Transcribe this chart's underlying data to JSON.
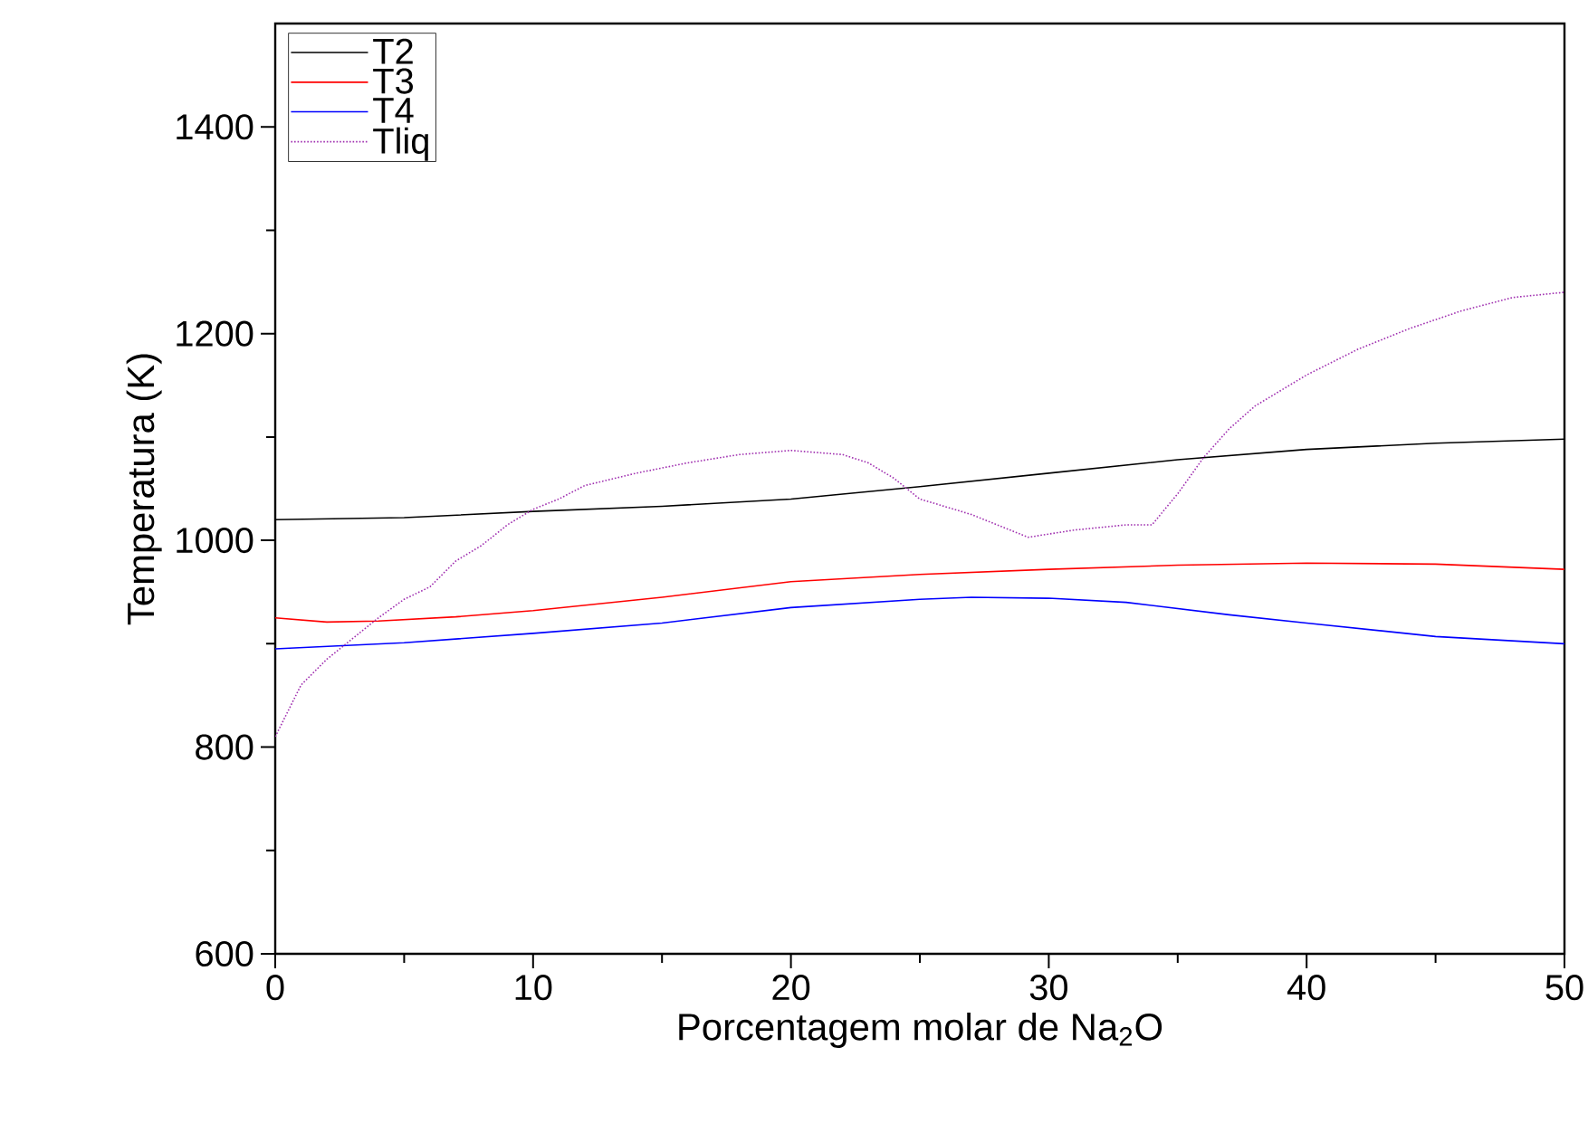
{
  "chart_data": {
    "type": "line",
    "xlabel": "Porcentagem molar de Na$_{2}$O",
    "ylabel": "Temperatura (K)",
    "xlim": [
      0,
      50
    ],
    "xticks": [
      0,
      10,
      20,
      30,
      40,
      50
    ],
    "ylim": [
      600,
      1500
    ],
    "yticks": [
      600,
      800,
      1000,
      1200,
      1400
    ],
    "grid": false,
    "legend": "top left",
    "marker": "none",
    "series": [
      {
        "name": "T2",
        "color": "#000000",
        "line_style": "solid",
        "x": [
          0,
          5,
          10,
          15,
          20,
          25,
          30,
          35,
          40,
          45,
          50
        ],
        "values": [
          1020,
          1022,
          1028,
          1033,
          1040,
          1052,
          1065,
          1078,
          1088,
          1094,
          1098
        ]
      },
      {
        "name": "T3",
        "color": "#ff0000",
        "line_style": "solid",
        "x": [
          0,
          2,
          4,
          7,
          10,
          15,
          20,
          25,
          30,
          35,
          40,
          45,
          50
        ],
        "values": [
          925,
          921,
          922,
          926,
          932,
          945,
          960,
          967,
          972,
          976,
          978,
          977,
          972
        ]
      },
      {
        "name": "T4",
        "color": "#0000ff",
        "line_style": "solid",
        "x": [
          0,
          5,
          10,
          15,
          20,
          25,
          27,
          30,
          33,
          37,
          40,
          45,
          50
        ],
        "values": [
          895,
          901,
          910,
          920,
          935,
          943,
          945,
          944,
          940,
          928,
          920,
          907,
          900
        ]
      },
      {
        "name": "Tliq",
        "color": "#a030b0",
        "line_style": "dotted",
        "x": [
          0,
          1,
          2,
          3,
          4,
          5,
          6,
          7,
          8,
          9,
          10,
          11,
          12,
          14,
          16,
          18,
          20,
          22,
          23,
          24,
          25,
          27,
          29.2,
          31,
          33,
          34,
          35,
          36,
          37,
          38,
          40,
          42,
          44,
          46,
          48,
          50
        ],
        "values": [
          810,
          860,
          885,
          905,
          925,
          943,
          955,
          980,
          995,
          1015,
          1030,
          1040,
          1053,
          1065,
          1075,
          1083,
          1087,
          1083,
          1075,
          1060,
          1040,
          1025,
          1003,
          1010,
          1015,
          1015,
          1045,
          1080,
          1108,
          1130,
          1160,
          1185,
          1205,
          1222,
          1235,
          1240
        ]
      }
    ]
  }
}
